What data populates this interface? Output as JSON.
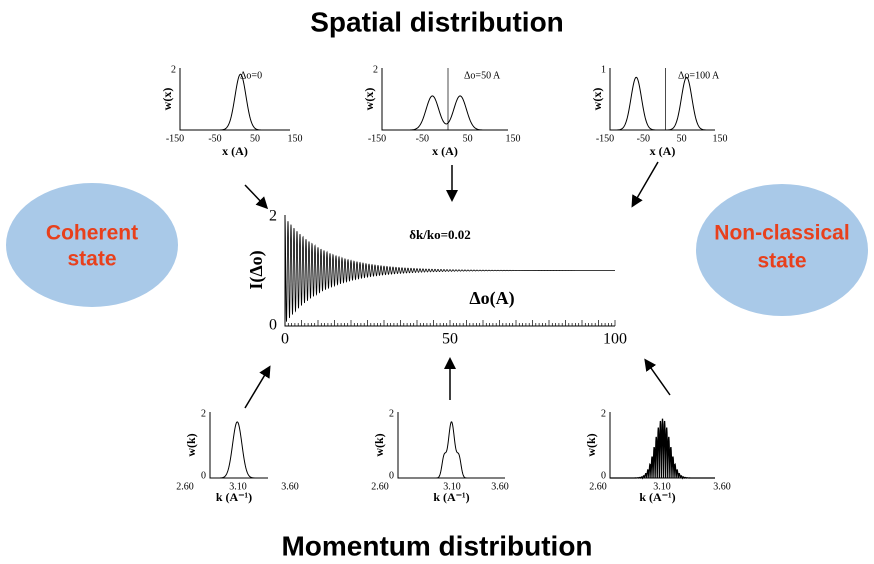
{
  "title_top": "Spatial distribution",
  "title_bottom": "Momentum distribution",
  "left_state": [
    "Coherent",
    "state"
  ],
  "right_state": [
    "Non-classical",
    "state"
  ],
  "central_plot": {
    "y_label": "I(Δo)",
    "x_label": "Δo(A)",
    "annotation": "δk/ko=0.02",
    "xticks": [
      0,
      50,
      100
    ],
    "yticks": [
      0,
      2
    ]
  },
  "spatial_plots": [
    {
      "y_label": "w(x)",
      "x_label": "x (A)",
      "annotation": "Δo=0",
      "xticks": [
        -150,
        -50,
        50,
        150
      ],
      "yticks": [
        2
      ]
    },
    {
      "y_label": "w(x)",
      "x_label": "x (A)",
      "annotation": "Δo=50 A",
      "xticks": [
        -150,
        -50,
        50,
        150
      ],
      "yticks": [
        2
      ]
    },
    {
      "y_label": "w(x)",
      "x_label": "x (A)",
      "annotation": "Δo=100 A",
      "xticks": [
        -150,
        -50,
        50,
        150
      ],
      "yticks": [
        1
      ]
    }
  ],
  "momentum_plots": [
    {
      "y_label": "w(k)",
      "x_label": "k (A⁻¹)",
      "xticks": [
        "2.60",
        "3.10",
        "3.60"
      ],
      "yticks": [
        2,
        0
      ]
    },
    {
      "y_label": "w(k)",
      "x_label": "k (A⁻¹)",
      "xticks": [
        "2.60",
        "3.10",
        "3.60"
      ],
      "yticks": [
        2,
        0
      ]
    },
    {
      "y_label": "w(k)",
      "x_label": "k (A⁻¹)",
      "xticks": [
        "2.60",
        "3.10",
        "3.60"
      ],
      "yticks": [
        2,
        0
      ]
    }
  ]
}
